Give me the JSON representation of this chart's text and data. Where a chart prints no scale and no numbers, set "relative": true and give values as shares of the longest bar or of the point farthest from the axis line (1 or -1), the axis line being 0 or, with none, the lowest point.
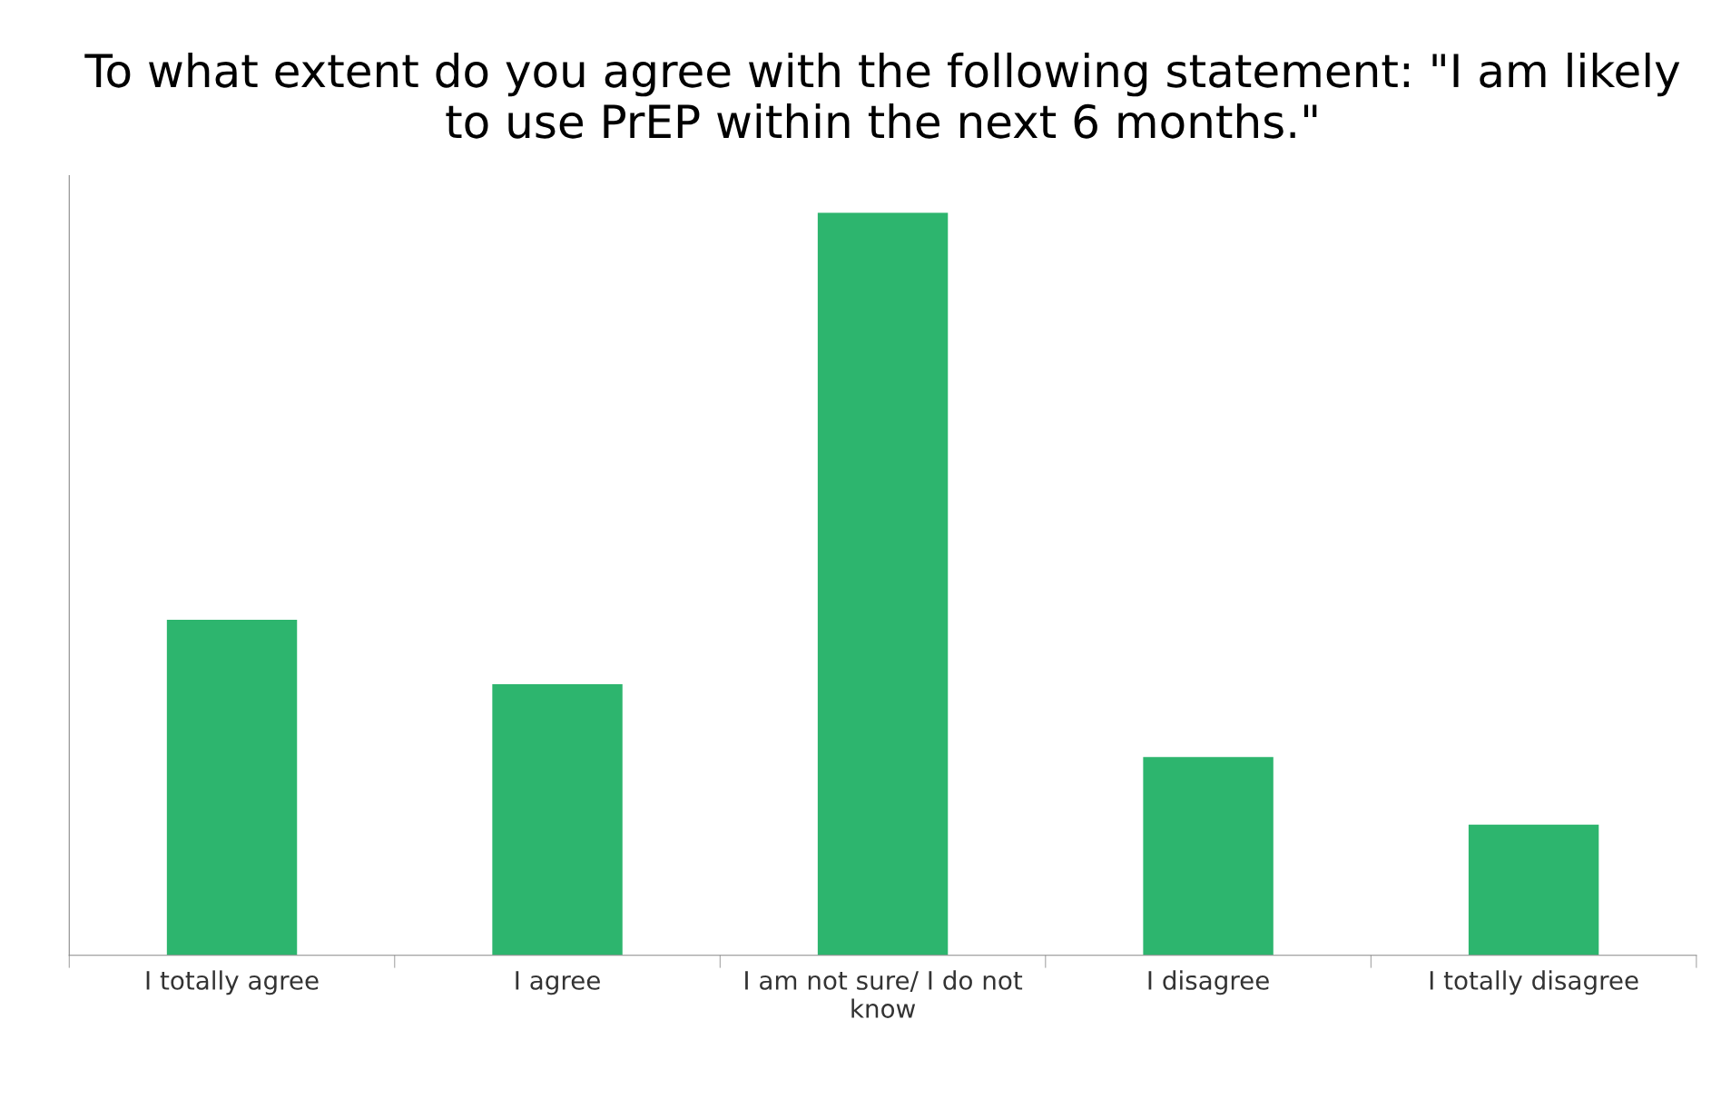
{
  "chart_data": {
    "type": "bar",
    "title": "To what extent do you agree with the following statement: \"I am likely\nto use PrEP within the next 6 months.\"",
    "categories": [
      "I totally agree",
      "I agree",
      "I am not sure/ I do not\nknow",
      "I disagree",
      "I totally disagree"
    ],
    "values": [
      0.452,
      0.365,
      1,
      0.267,
      0.176
    ],
    "color": "#2db56e",
    "relative": true
  }
}
